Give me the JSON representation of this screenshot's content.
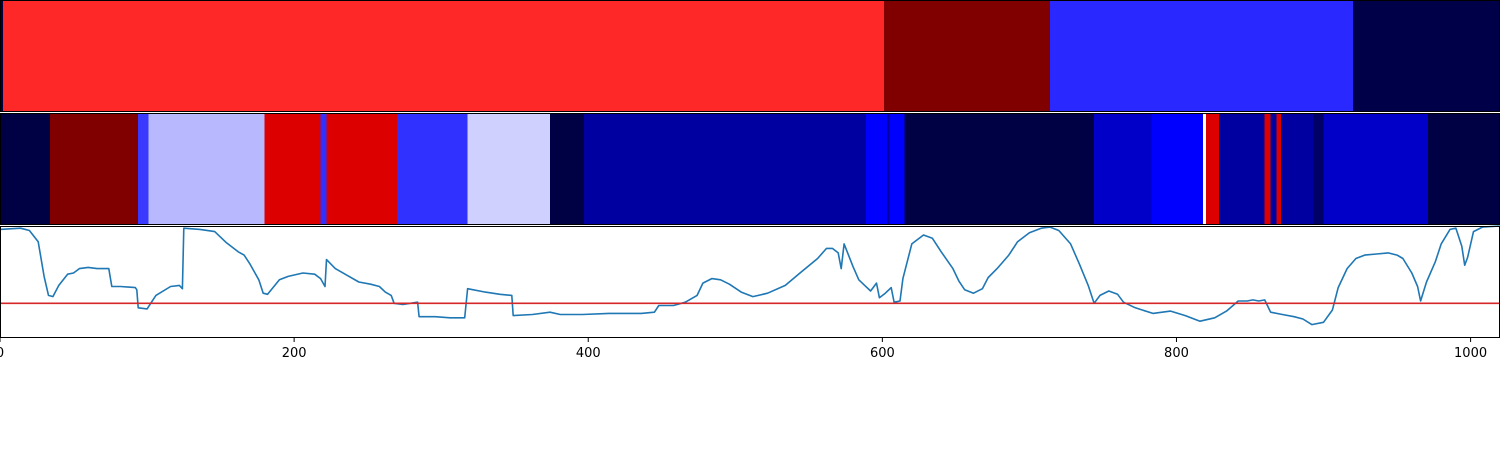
{
  "chart_data": [
    {
      "type": "heatmap",
      "xlim": [
        0,
        1020
      ],
      "segments": [
        {
          "from": 0,
          "to": 2,
          "color": "#000044"
        },
        {
          "from": 2,
          "to": 601,
          "color": "#ff2828"
        },
        {
          "from": 601,
          "to": 714,
          "color": "#800000"
        },
        {
          "from": 714,
          "to": 920,
          "color": "#2828ff"
        },
        {
          "from": 920,
          "to": 1020,
          "color": "#000048"
        }
      ]
    },
    {
      "type": "heatmap",
      "xlim": [
        0,
        1020
      ],
      "segments": [
        {
          "from": 0,
          "to": 34,
          "color": "#000044"
        },
        {
          "from": 34,
          "to": 94,
          "color": "#800000"
        },
        {
          "from": 94,
          "to": 101,
          "color": "#3a3aff"
        },
        {
          "from": 101,
          "to": 180,
          "color": "#b8b8ff"
        },
        {
          "from": 180,
          "to": 218,
          "color": "#dc0000"
        },
        {
          "from": 218,
          "to": 222,
          "color": "#3030ff"
        },
        {
          "from": 222,
          "to": 270,
          "color": "#dc0000"
        },
        {
          "from": 270,
          "to": 318,
          "color": "#3030ff"
        },
        {
          "from": 318,
          "to": 374,
          "color": "#d0d0ff"
        },
        {
          "from": 374,
          "to": 397,
          "color": "#000044"
        },
        {
          "from": 397,
          "to": 589,
          "color": "#0000a0"
        },
        {
          "from": 589,
          "to": 603,
          "color": "#0000ff"
        },
        {
          "from": 603,
          "to": 605,
          "color": "#0000a0"
        },
        {
          "from": 605,
          "to": 615,
          "color": "#0000ff"
        },
        {
          "from": 615,
          "to": 744,
          "color": "#000044"
        },
        {
          "from": 744,
          "to": 783,
          "color": "#0000c8"
        },
        {
          "from": 783,
          "to": 818,
          "color": "#0000ff"
        },
        {
          "from": 818,
          "to": 820,
          "color": "#ffffff"
        },
        {
          "from": 820,
          "to": 829,
          "color": "#dc0000"
        },
        {
          "from": 829,
          "to": 860,
          "color": "#0000a0"
        },
        {
          "from": 860,
          "to": 864,
          "color": "#dc0000"
        },
        {
          "from": 864,
          "to": 868,
          "color": "#0000a0"
        },
        {
          "from": 868,
          "to": 871,
          "color": "#dc0000"
        },
        {
          "from": 871,
          "to": 893,
          "color": "#0000a0"
        },
        {
          "from": 893,
          "to": 900,
          "color": "#000066"
        },
        {
          "from": 900,
          "to": 971,
          "color": "#0000c8"
        },
        {
          "from": 971,
          "to": 1020,
          "color": "#000044"
        }
      ]
    },
    {
      "type": "line",
      "xlim": [
        0,
        1020
      ],
      "ylim": [
        0,
        1
      ],
      "xticks": [
        "0",
        "200",
        "400",
        "600",
        "800",
        "1000"
      ],
      "line_color": "#1f77b4",
      "threshold": 0.31,
      "threshold_color": "#d62728",
      "points": [
        [
          0,
          0.97
        ],
        [
          14,
          0.98
        ],
        [
          20,
          0.96
        ],
        [
          26,
          0.86
        ],
        [
          30,
          0.55
        ],
        [
          33,
          0.38
        ],
        [
          36,
          0.37
        ],
        [
          40,
          0.47
        ],
        [
          46,
          0.57
        ],
        [
          50,
          0.58
        ],
        [
          54,
          0.62
        ],
        [
          60,
          0.63
        ],
        [
          66,
          0.62
        ],
        [
          70,
          0.62
        ],
        [
          74,
          0.62
        ],
        [
          76,
          0.46
        ],
        [
          82,
          0.46
        ],
        [
          92,
          0.45
        ],
        [
          93,
          0.43
        ],
        [
          94,
          0.27
        ],
        [
          100,
          0.26
        ],
        [
          102,
          0.3
        ],
        [
          106,
          0.38
        ],
        [
          116,
          0.46
        ],
        [
          122,
          0.47
        ],
        [
          124,
          0.44
        ],
        [
          125,
          0.98
        ],
        [
          136,
          0.97
        ],
        [
          146,
          0.95
        ],
        [
          154,
          0.85
        ],
        [
          162,
          0.77
        ],
        [
          166,
          0.74
        ],
        [
          170,
          0.66
        ],
        [
          176,
          0.52
        ],
        [
          179,
          0.4
        ],
        [
          182,
          0.39
        ],
        [
          190,
          0.52
        ],
        [
          196,
          0.55
        ],
        [
          206,
          0.58
        ],
        [
          214,
          0.57
        ],
        [
          218,
          0.53
        ],
        [
          221,
          0.46
        ],
        [
          222,
          0.7
        ],
        [
          228,
          0.62
        ],
        [
          236,
          0.56
        ],
        [
          244,
          0.5
        ],
        [
          252,
          0.48
        ],
        [
          258,
          0.46
        ],
        [
          262,
          0.41
        ],
        [
          266,
          0.38
        ],
        [
          268,
          0.31
        ],
        [
          274,
          0.3
        ],
        [
          284,
          0.32
        ],
        [
          285,
          0.19
        ],
        [
          296,
          0.19
        ],
        [
          306,
          0.18
        ],
        [
          316,
          0.18
        ],
        [
          318,
          0.44
        ],
        [
          330,
          0.41
        ],
        [
          340,
          0.39
        ],
        [
          348,
          0.38
        ],
        [
          349,
          0.2
        ],
        [
          362,
          0.21
        ],
        [
          374,
          0.23
        ],
        [
          381,
          0.21
        ],
        [
          396,
          0.21
        ],
        [
          414,
          0.22
        ],
        [
          436,
          0.22
        ],
        [
          445,
          0.23
        ],
        [
          448,
          0.29
        ],
        [
          458,
          0.29
        ],
        [
          466,
          0.32
        ],
        [
          474,
          0.38
        ],
        [
          478,
          0.49
        ],
        [
          484,
          0.53
        ],
        [
          490,
          0.52
        ],
        [
          496,
          0.48
        ],
        [
          504,
          0.41
        ],
        [
          512,
          0.37
        ],
        [
          522,
          0.4
        ],
        [
          534,
          0.47
        ],
        [
          544,
          0.58
        ],
        [
          556,
          0.71
        ],
        [
          562,
          0.8
        ],
        [
          566,
          0.8
        ],
        [
          570,
          0.76
        ],
        [
          572,
          0.62
        ],
        [
          574,
          0.84
        ],
        [
          580,
          0.64
        ],
        [
          584,
          0.52
        ],
        [
          588,
          0.47
        ],
        [
          592,
          0.42
        ],
        [
          596,
          0.49
        ],
        [
          598,
          0.36
        ],
        [
          602,
          0.4
        ],
        [
          606,
          0.45
        ],
        [
          608,
          0.32
        ],
        [
          612,
          0.33
        ],
        [
          614,
          0.53
        ],
        [
          620,
          0.84
        ],
        [
          628,
          0.92
        ],
        [
          634,
          0.89
        ],
        [
          640,
          0.77
        ],
        [
          648,
          0.62
        ],
        [
          652,
          0.51
        ],
        [
          656,
          0.43
        ],
        [
          662,
          0.4
        ],
        [
          668,
          0.44
        ],
        [
          672,
          0.54
        ],
        [
          678,
          0.62
        ],
        [
          686,
          0.74
        ],
        [
          692,
          0.86
        ],
        [
          700,
          0.94
        ],
        [
          708,
          0.98
        ],
        [
          714,
          0.99
        ],
        [
          720,
          0.96
        ],
        [
          728,
          0.84
        ],
        [
          734,
          0.66
        ],
        [
          740,
          0.47
        ],
        [
          744,
          0.31
        ],
        [
          748,
          0.38
        ],
        [
          754,
          0.42
        ],
        [
          760,
          0.39
        ],
        [
          764,
          0.32
        ],
        [
          772,
          0.27
        ],
        [
          784,
          0.22
        ],
        [
          796,
          0.24
        ],
        [
          806,
          0.2
        ],
        [
          816,
          0.15
        ],
        [
          826,
          0.18
        ],
        [
          834,
          0.24
        ],
        [
          842,
          0.33
        ],
        [
          848,
          0.33
        ],
        [
          852,
          0.34
        ],
        [
          856,
          0.33
        ],
        [
          860,
          0.34
        ],
        [
          864,
          0.23
        ],
        [
          872,
          0.21
        ],
        [
          880,
          0.19
        ],
        [
          886,
          0.17
        ],
        [
          892,
          0.12
        ],
        [
          900,
          0.14
        ],
        [
          906,
          0.25
        ],
        [
          910,
          0.45
        ],
        [
          916,
          0.62
        ],
        [
          922,
          0.71
        ],
        [
          928,
          0.74
        ],
        [
          936,
          0.75
        ],
        [
          944,
          0.76
        ],
        [
          950,
          0.74
        ],
        [
          954,
          0.71
        ],
        [
          960,
          0.58
        ],
        [
          964,
          0.46
        ],
        [
          966,
          0.33
        ],
        [
          970,
          0.5
        ],
        [
          976,
          0.68
        ],
        [
          980,
          0.84
        ],
        [
          986,
          0.97
        ],
        [
          990,
          0.98
        ],
        [
          994,
          0.82
        ],
        [
          996,
          0.65
        ],
        [
          998,
          0.72
        ],
        [
          1002,
          0.95
        ],
        [
          1008,
          0.99
        ],
        [
          1020,
          1.0
        ]
      ]
    }
  ]
}
